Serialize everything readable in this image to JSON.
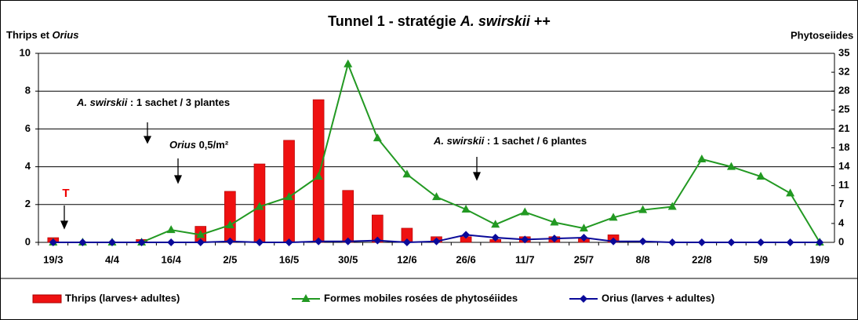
{
  "chart_data": {
    "type": "bar-line",
    "title": {
      "before": "Tunnel 1 -  stratégie ",
      "italic": "A. swirskii",
      "after": " ++"
    },
    "y_label": {
      "text": "Thrips et ",
      "italic": "Orius"
    },
    "y2_label": "Phytoseiides",
    "categories": [
      "19/3",
      null,
      "4/4",
      null,
      "16/4",
      null,
      "2/5",
      null,
      "16/5",
      null,
      "30/5",
      null,
      "12/6",
      null,
      "26/6",
      null,
      "11/7",
      null,
      "25/7",
      null,
      "8/8",
      null,
      "22/8",
      null,
      "5/9",
      null,
      "19/9"
    ],
    "series": [
      {
        "name": "Thrips (larves+ adultes)",
        "type": "bar",
        "color": "#ee1111",
        "axis": "y",
        "values": [
          0.25,
          0,
          0,
          0.15,
          0,
          0.85,
          2.7,
          4.15,
          5.4,
          7.55,
          2.75,
          1.45,
          0.75,
          0.3,
          0.3,
          0.15,
          0.3,
          0.3,
          0.2,
          0.4,
          0,
          0,
          0,
          0,
          0,
          0,
          0
        ]
      },
      {
        "name": "Formes mobiles rosées de phytoséiides",
        "type": "line",
        "marker": "triangle",
        "color": "#229922",
        "axis": "y2",
        "values": [
          0,
          0,
          0,
          0,
          2.3,
          1.4,
          3.2,
          6.6,
          8.4,
          12.2,
          33,
          19.3,
          12.6,
          8.4,
          6.1,
          3.3,
          5.6,
          3.7,
          2.6,
          4.6,
          6,
          6.6,
          15.4,
          14,
          12.2,
          9.1,
          0
        ]
      },
      {
        "name": "Orius (larves + adultes)",
        "type": "line",
        "marker": "diamond",
        "color": "#0a0a99",
        "axis": "y",
        "values": [
          0,
          0,
          0,
          0,
          0,
          0,
          0.05,
          0,
          0,
          0.05,
          0.05,
          0.1,
          0,
          0.05,
          0.4,
          0.25,
          0.15,
          0.2,
          0.25,
          0.05,
          0.05,
          0,
          0,
          0,
          0,
          0,
          0
        ]
      }
    ],
    "ylim": [
      0,
      10
    ],
    "yticks": [
      0,
      2,
      4,
      6,
      8,
      10
    ],
    "y2lim": [
      0,
      35
    ],
    "y2ticks": [
      0,
      {
        "value": 3.5,
        "label": "4"
      },
      7,
      {
        "value": 10.5,
        "label": "11"
      },
      14,
      {
        "value": 17.5,
        "label": "18"
      },
      21,
      {
        "value": 24.5,
        "label": "25"
      },
      28,
      {
        "value": 31.5,
        "label": "32"
      },
      35
    ],
    "grid": true,
    "annotations": [
      {
        "italic": "A. swirskii",
        "text": " : 1 sachet / 3 plantes"
      },
      {
        "italic": "Orius",
        "text": " 0,5/m²"
      },
      {
        "italic": "A. swirskii",
        "text": " : 1 sachet / 6  plantes"
      },
      {
        "text": "T"
      }
    ]
  }
}
